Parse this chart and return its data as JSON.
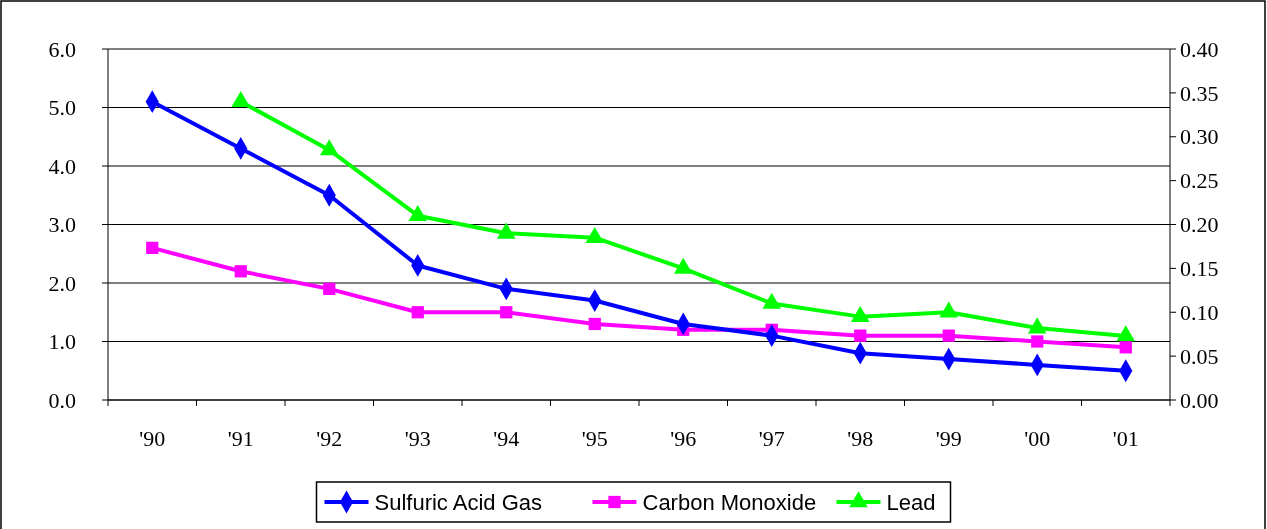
{
  "chart_data": {
    "type": "line",
    "categories": [
      "'90",
      "'91",
      "'92",
      "'93",
      "'94",
      "'95",
      "'96",
      "'97",
      "'98",
      "'99",
      "'00",
      "'01"
    ],
    "series": [
      {
        "name": "Sulfuric Acid Gas",
        "color": "#0000ff",
        "marker": "diamond",
        "values": [
          5.1,
          4.3,
          3.5,
          2.3,
          1.9,
          1.7,
          1.3,
          1.1,
          0.8,
          0.7,
          0.6,
          0.5
        ]
      },
      {
        "name": "Carbon Monoxide",
        "color": "#ff00ff",
        "marker": "square",
        "values": [
          2.6,
          2.2,
          1.9,
          1.5,
          1.5,
          1.3,
          1.2,
          1.2,
          1.1,
          1.1,
          1.0,
          0.9
        ]
      },
      {
        "name": "Lead",
        "color": "#00ff00",
        "marker": "triangle",
        "axis": "y2",
        "values": [
          null,
          0.34,
          0.285,
          0.21,
          0.19,
          0.185,
          0.15,
          0.11,
          0.095,
          0.1,
          0.082,
          0.073
        ]
      }
    ],
    "ylim": [
      0,
      6
    ],
    "yticks": [
      {
        "value": 0,
        "label": "0.0"
      },
      {
        "value": 1,
        "label": "1.0"
      },
      {
        "value": 2,
        "label": "2.0"
      },
      {
        "value": 3,
        "label": "3.0"
      },
      {
        "value": 4,
        "label": "4.0"
      },
      {
        "value": 5,
        "label": "5.0"
      },
      {
        "value": 6,
        "label": "6.0"
      }
    ],
    "y2lim": [
      0,
      0.4
    ],
    "y2ticks": [
      {
        "value": 0,
        "label": "0.00"
      },
      {
        "value": 0.05,
        "label": "0.05"
      },
      {
        "value": 0.1,
        "label": "0.10"
      },
      {
        "value": 0.15,
        "label": "0.15"
      },
      {
        "value": 0.2,
        "label": "0.20"
      },
      {
        "value": 0.25,
        "label": "0.25"
      },
      {
        "value": 0.3,
        "label": "0.30"
      },
      {
        "value": 0.35,
        "label": "0.35"
      },
      {
        "value": 0.4,
        "label": "0.40"
      }
    ],
    "grid": "y",
    "legend": "bottom",
    "line_style": "solid"
  }
}
